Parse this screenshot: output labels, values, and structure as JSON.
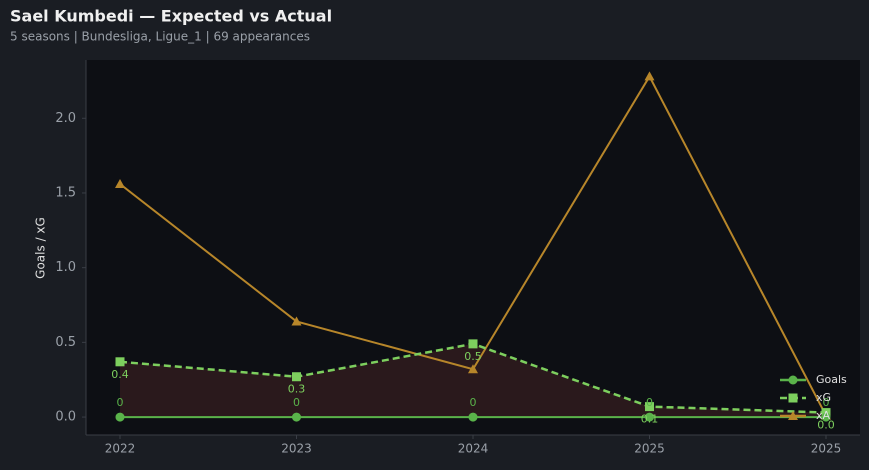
{
  "chart_data": {
    "type": "line",
    "title": "Sael Kumbedi — Expected vs Actual",
    "subtitle": "5 seasons | Bundesliga, Ligue_1 | 69 appearances",
    "y_label": "Goals / xG",
    "categories": [
      "2022",
      "2023",
      "2024",
      "2025",
      "2025"
    ],
    "series": [
      {
        "name": "Goals",
        "color": "#5ab34a",
        "style": "solid",
        "marker": "circle",
        "values": [
          0,
          0,
          0,
          0,
          0
        ]
      },
      {
        "name": "xG",
        "color": "#7dcf5e",
        "style": "dashed",
        "marker": "square",
        "values": [
          0.37,
          0.27,
          0.49,
          0.07,
          0.03
        ],
        "value_labels": [
          "0.4",
          "0.3",
          "0.5",
          "0.1",
          "0.0"
        ]
      },
      {
        "name": "xA",
        "color": "#b7862a",
        "style": "solid",
        "marker": "triangle",
        "values": [
          1.56,
          0.64,
          0.32,
          2.28,
          0.01
        ]
      }
    ],
    "fill_color": "#2e1b1d",
    "ylim": [
      -0.12,
      2.39
    ],
    "yticks": [
      {
        "value": 0,
        "label": "0.0"
      },
      0.5,
      {
        "value": 1,
        "label": "1.0"
      },
      1.5,
      {
        "value": 2,
        "label": "2.0"
      }
    ],
    "legend": "lower right"
  }
}
